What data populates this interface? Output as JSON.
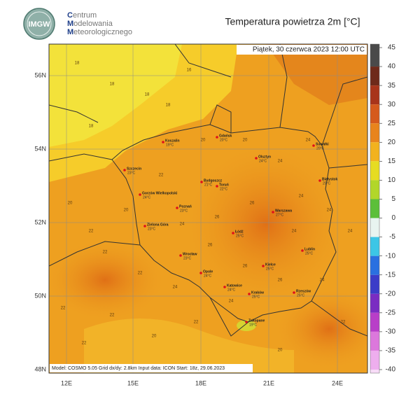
{
  "header": {
    "logo": "IMGW",
    "org_lines": [
      "Centrum",
      "Modelowania",
      "Meteorologicznego"
    ],
    "title": "Temperatura powietrza 2m [°C]"
  },
  "map": {
    "timestamp": "Piątek, 30 czerwca 2023 12:00 UTC",
    "footer": "Model: COSMO 5.05  Grid dx/dy: 2.8km  Input data: ICON  Start: 18z, 29.06.2023",
    "lat_labels": [
      "56N",
      "54N",
      "52N",
      "50N",
      "48N"
    ],
    "lon_labels": [
      "12E",
      "15E",
      "18E",
      "21E",
      "24E"
    ],
    "cities": [
      {
        "name": "Koszalin",
        "temp": "19°C"
      },
      {
        "name": "Gdańsk",
        "temp": "20°C"
      },
      {
        "name": "Suwałki",
        "temp": "20°C"
      },
      {
        "name": "Olsztyn",
        "temp": "24°C"
      },
      {
        "name": "Szczecin",
        "temp": "23°C"
      },
      {
        "name": "Białystok",
        "temp": "25°C"
      },
      {
        "name": "Bydgoszcz",
        "temp": "21°C"
      },
      {
        "name": "Toruń",
        "temp": "22°C"
      },
      {
        "name": "Gorzów Wielkopolski",
        "temp": "24°C"
      },
      {
        "name": "Poznań",
        "temp": "23°C"
      },
      {
        "name": "Warszawa",
        "temp": "27°C"
      },
      {
        "name": "Zielona Góra",
        "temp": "23°C"
      },
      {
        "name": "Łódź",
        "temp": "25°C"
      },
      {
        "name": "Lublin",
        "temp": "25°C"
      },
      {
        "name": "Wrocław",
        "temp": "23°C"
      },
      {
        "name": "Kielce",
        "temp": "25°C"
      },
      {
        "name": "Opole",
        "temp": "24°C"
      },
      {
        "name": "Katowice",
        "temp": "24°C"
      },
      {
        "name": "Rzeszów",
        "temp": "25°C"
      },
      {
        "name": "Kraków",
        "temp": "25°C"
      },
      {
        "name": "Zakopane",
        "temp": "19°C"
      }
    ],
    "contour_labels": [
      18,
      18,
      18,
      16,
      18,
      18,
      20,
      20,
      22,
      22,
      20,
      24,
      24,
      24,
      22,
      26,
      26,
      24,
      24,
      26,
      22,
      22,
      20,
      22,
      24,
      26,
      24,
      22,
      20,
      22,
      24,
      24,
      26,
      24,
      22,
      20
    ]
  },
  "colorbar": {
    "ticks": [
      45,
      40,
      35,
      30,
      25,
      20,
      15,
      10,
      5,
      0,
      -5,
      -10,
      -15,
      -20,
      -25,
      -30,
      -35,
      -40
    ],
    "colors": [
      "#4a4a4a",
      "#6e2a1a",
      "#a8341a",
      "#d55a1c",
      "#e8841c",
      "#f2b21e",
      "#e6dc22",
      "#b2d62a",
      "#5cbf3a",
      "#e8f4f0",
      "#3cc6e6",
      "#2a70e0",
      "#3b3cc8",
      "#7a2cc2",
      "#b83ec8",
      "#dc78dc",
      "#eeaeee",
      "#f8dcf8"
    ]
  }
}
